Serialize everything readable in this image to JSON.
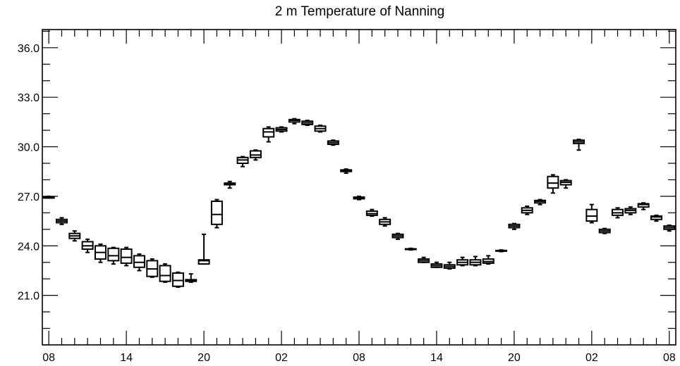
{
  "chart_data": {
    "type": "box",
    "title": "2 m Temperature of Nanning",
    "xlabel": "",
    "ylabel": "",
    "ylim": [
      18.0,
      37.1
    ],
    "xlim": [
      -0.5,
      48.5
    ],
    "yticks": [
      21.0,
      24.0,
      27.0,
      30.0,
      33.0,
      36.0
    ],
    "ytick_labels": [
      "21.0",
      "24.0",
      "27.0",
      "30.0",
      "33.0",
      "36.0"
    ],
    "xticks": [
      0,
      6,
      12,
      18,
      24,
      30,
      36,
      42,
      48
    ],
    "xtick_labels": [
      "08",
      "14",
      "20",
      "02",
      "08",
      "14",
      "20",
      "02",
      "08"
    ],
    "grid": false,
    "boxes": [
      {
        "x": 0,
        "min": 26.9,
        "q1": 26.9,
        "median": 26.9,
        "q3": 26.95,
        "max": 27.0
      },
      {
        "x": 1,
        "min": 25.3,
        "q1": 25.4,
        "median": 25.5,
        "q3": 25.6,
        "max": 25.7
      },
      {
        "x": 2,
        "min": 24.3,
        "q1": 24.45,
        "median": 24.6,
        "q3": 24.75,
        "max": 24.9
      },
      {
        "x": 3,
        "min": 23.6,
        "q1": 23.8,
        "median": 24.0,
        "q3": 24.25,
        "max": 24.4
      },
      {
        "x": 4,
        "min": 23.0,
        "q1": 23.2,
        "median": 23.6,
        "q3": 24.0,
        "max": 24.1
      },
      {
        "x": 5,
        "min": 22.9,
        "q1": 23.1,
        "median": 23.4,
        "q3": 23.85,
        "max": 23.9
      },
      {
        "x": 6,
        "min": 22.8,
        "q1": 22.95,
        "median": 23.3,
        "q3": 23.8,
        "max": 23.9
      },
      {
        "x": 7,
        "min": 22.5,
        "q1": 22.7,
        "median": 23.0,
        "q3": 23.4,
        "max": 23.5
      },
      {
        "x": 8,
        "min": 22.1,
        "q1": 22.15,
        "median": 22.6,
        "q3": 23.1,
        "max": 23.2
      },
      {
        "x": 9,
        "min": 21.8,
        "q1": 21.85,
        "median": 22.2,
        "q3": 22.8,
        "max": 22.9
      },
      {
        "x": 10,
        "min": 21.5,
        "q1": 21.55,
        "median": 21.9,
        "q3": 22.35,
        "max": 22.4
      },
      {
        "x": 11,
        "min": 21.8,
        "q1": 21.85,
        "median": 21.9,
        "q3": 21.95,
        "max": 22.3
      },
      {
        "x": 12,
        "min": 22.9,
        "q1": 22.9,
        "median": 23.1,
        "q3": 23.15,
        "max": 24.7
      },
      {
        "x": 13,
        "min": 25.1,
        "q1": 25.3,
        "median": 25.9,
        "q3": 26.7,
        "max": 26.8
      },
      {
        "x": 14,
        "min": 27.5,
        "q1": 27.7,
        "median": 27.75,
        "q3": 27.8,
        "max": 27.9
      },
      {
        "x": 15,
        "min": 28.8,
        "q1": 29.0,
        "median": 29.2,
        "q3": 29.35,
        "max": 29.4
      },
      {
        "x": 16,
        "min": 29.2,
        "q1": 29.35,
        "median": 29.5,
        "q3": 29.75,
        "max": 29.8
      },
      {
        "x": 17,
        "min": 30.3,
        "q1": 30.6,
        "median": 30.9,
        "q3": 31.1,
        "max": 31.2
      },
      {
        "x": 18,
        "min": 30.9,
        "q1": 30.95,
        "median": 31.05,
        "q3": 31.15,
        "max": 31.2
      },
      {
        "x": 19,
        "min": 31.4,
        "q1": 31.5,
        "median": 31.6,
        "q3": 31.65,
        "max": 31.7
      },
      {
        "x": 20,
        "min": 31.3,
        "q1": 31.35,
        "median": 31.45,
        "q3": 31.55,
        "max": 31.6
      },
      {
        "x": 21,
        "min": 30.9,
        "q1": 30.95,
        "median": 31.1,
        "q3": 31.25,
        "max": 31.3
      },
      {
        "x": 22,
        "min": 30.1,
        "q1": 30.15,
        "median": 30.25,
        "q3": 30.35,
        "max": 30.4
      },
      {
        "x": 23,
        "min": 28.4,
        "q1": 28.5,
        "median": 28.55,
        "q3": 28.6,
        "max": 28.65
      },
      {
        "x": 24,
        "min": 26.8,
        "q1": 26.85,
        "median": 26.9,
        "q3": 26.95,
        "max": 27.0
      },
      {
        "x": 25,
        "min": 25.8,
        "q1": 25.85,
        "median": 25.95,
        "q3": 26.1,
        "max": 26.2
      },
      {
        "x": 26,
        "min": 25.2,
        "q1": 25.3,
        "median": 25.45,
        "q3": 25.6,
        "max": 25.7
      },
      {
        "x": 27,
        "min": 24.4,
        "q1": 24.5,
        "median": 24.6,
        "q3": 24.7,
        "max": 24.75
      },
      {
        "x": 28,
        "min": 23.75,
        "q1": 23.78,
        "median": 23.8,
        "q3": 23.82,
        "max": 23.85
      },
      {
        "x": 29,
        "min": 23.0,
        "q1": 23.0,
        "median": 23.1,
        "q3": 23.2,
        "max": 23.3
      },
      {
        "x": 30,
        "min": 22.7,
        "q1": 22.7,
        "median": 22.8,
        "q3": 22.9,
        "max": 23.0
      },
      {
        "x": 31,
        "min": 22.6,
        "q1": 22.65,
        "median": 22.75,
        "q3": 22.85,
        "max": 23.0
      },
      {
        "x": 32,
        "min": 22.8,
        "q1": 22.85,
        "median": 23.0,
        "q3": 23.15,
        "max": 23.3
      },
      {
        "x": 33,
        "min": 22.8,
        "q1": 22.85,
        "median": 23.0,
        "q3": 23.15,
        "max": 23.35
      },
      {
        "x": 34,
        "min": 22.9,
        "q1": 22.95,
        "median": 23.05,
        "q3": 23.2,
        "max": 23.4
      },
      {
        "x": 35,
        "min": 23.65,
        "q1": 23.68,
        "median": 23.7,
        "q3": 23.72,
        "max": 23.75
      },
      {
        "x": 36,
        "min": 25.0,
        "q1": 25.1,
        "median": 25.2,
        "q3": 25.3,
        "max": 25.35
      },
      {
        "x": 37,
        "min": 25.9,
        "q1": 26.0,
        "median": 26.15,
        "q3": 26.3,
        "max": 26.4
      },
      {
        "x": 38,
        "min": 26.5,
        "q1": 26.6,
        "median": 26.7,
        "q3": 26.75,
        "max": 26.8
      },
      {
        "x": 39,
        "min": 27.2,
        "q1": 27.5,
        "median": 27.8,
        "q3": 28.2,
        "max": 28.3
      },
      {
        "x": 40,
        "min": 27.5,
        "q1": 27.7,
        "median": 27.85,
        "q3": 27.95,
        "max": 28.0
      },
      {
        "x": 41,
        "min": 29.8,
        "q1": 30.2,
        "median": 30.3,
        "q3": 30.4,
        "max": 30.45
      },
      {
        "x": 42,
        "min": 25.4,
        "q1": 25.5,
        "median": 25.8,
        "q3": 26.2,
        "max": 26.5
      },
      {
        "x": 43,
        "min": 24.75,
        "q1": 24.8,
        "median": 24.9,
        "q3": 25.0,
        "max": 25.05
      },
      {
        "x": 44,
        "min": 25.7,
        "q1": 25.85,
        "median": 26.0,
        "q3": 26.2,
        "max": 26.3
      },
      {
        "x": 45,
        "min": 25.9,
        "q1": 26.0,
        "median": 26.15,
        "q3": 26.25,
        "max": 26.35
      },
      {
        "x": 46,
        "min": 26.2,
        "q1": 26.35,
        "median": 26.5,
        "q3": 26.55,
        "max": 26.6
      },
      {
        "x": 47,
        "min": 25.5,
        "q1": 25.6,
        "median": 25.75,
        "q3": 25.8,
        "max": 25.85
      },
      {
        "x": 48,
        "min": 24.9,
        "q1": 25.0,
        "median": 25.1,
        "q3": 25.2,
        "max": 25.25
      }
    ]
  }
}
